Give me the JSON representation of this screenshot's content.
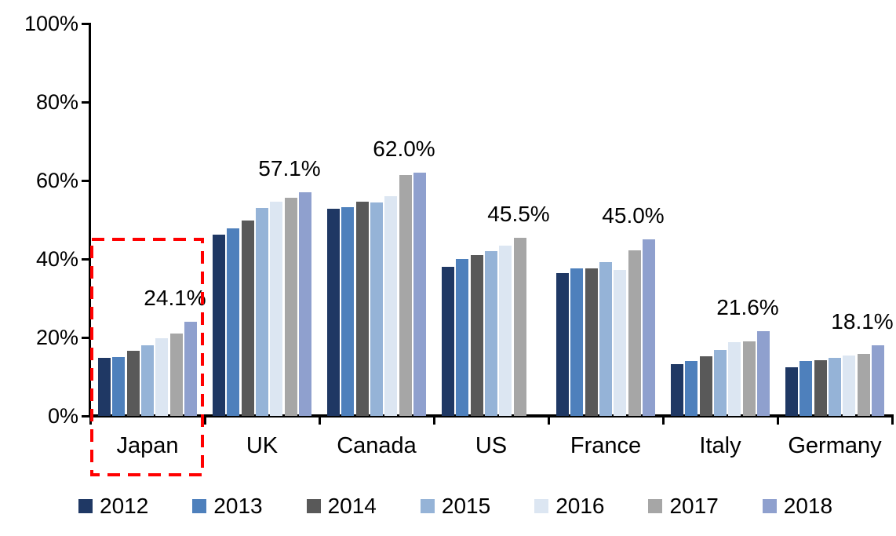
{
  "chart_data": {
    "type": "bar",
    "title": "",
    "xlabel": "",
    "ylabel": "",
    "categories": [
      "Japan",
      "UK",
      "Canada",
      "US",
      "France",
      "Italy",
      "Germany"
    ],
    "series": [
      {
        "name": "2012",
        "color": "#1F3864",
        "values": [
          14.9,
          46.2,
          52.8,
          38.0,
          36.4,
          13.3,
          12.5
        ]
      },
      {
        "name": "2013",
        "color": "#4E80BC",
        "values": [
          15.0,
          47.8,
          53.2,
          40.0,
          37.6,
          14.1,
          14.0
        ]
      },
      {
        "name": "2014",
        "color": "#595959",
        "values": [
          16.6,
          49.8,
          54.7,
          41.0,
          37.6,
          15.3,
          14.3
        ]
      },
      {
        "name": "2015",
        "color": "#95B3D7",
        "values": [
          18.0,
          53.0,
          54.5,
          42.0,
          39.2,
          16.8,
          14.8
        ]
      },
      {
        "name": "2016",
        "color": "#DCE6F2",
        "values": [
          19.8,
          54.6,
          56.0,
          43.5,
          37.3,
          18.9,
          15.5
        ]
      },
      {
        "name": "2017",
        "color": "#A6A6A6",
        "values": [
          21.0,
          55.7,
          61.5,
          45.5,
          42.2,
          19.1,
          15.9
        ]
      },
      {
        "name": "2018",
        "color": "#8FA0CE",
        "values": [
          24.1,
          57.1,
          62.0,
          null,
          45.0,
          21.6,
          18.1
        ]
      }
    ],
    "value_labels": [
      "24.1%",
      "57.1%",
      "62.0%",
      "45.5%",
      "45.0%",
      "21.6%",
      "18.1%"
    ],
    "ylim": [
      0,
      100
    ],
    "yticks": [
      {
        "value": 0,
        "label": "0%"
      },
      {
        "value": 20,
        "label": "20%"
      },
      {
        "value": 40,
        "label": "40%"
      },
      {
        "value": 60,
        "label": "60%"
      },
      {
        "value": 80,
        "label": "80%"
      },
      {
        "value": 100,
        "label": "100%"
      }
    ],
    "grid": false,
    "legend_position": "bottom",
    "highlight": {
      "category": "Japan",
      "style": "dashed-box",
      "color": "#FF0000"
    }
  }
}
